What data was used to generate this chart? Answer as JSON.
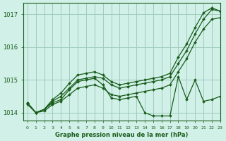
{
  "title": "Graphe pression niveau de la mer (hPa)",
  "bg_color": "#d0f0e8",
  "grid_color": "#a0ccbb",
  "line_color": "#1a5c1a",
  "xlim": [
    -0.5,
    23
  ],
  "ylim": [
    1013.75,
    1017.35
  ],
  "yticks": [
    1014,
    1015,
    1016,
    1017
  ],
  "xticks": [
    0,
    1,
    2,
    3,
    4,
    5,
    6,
    7,
    8,
    9,
    10,
    11,
    12,
    13,
    14,
    15,
    16,
    17,
    18,
    19,
    20,
    21,
    22,
    23
  ],
  "line1": [
    1014.3,
    1014.0,
    1014.1,
    1014.35,
    1014.5,
    1014.75,
    1015.0,
    1015.05,
    1015.1,
    1015.05,
    1014.85,
    1014.75,
    1014.8,
    1014.85,
    1014.9,
    1014.95,
    1015.0,
    1015.1,
    1015.5,
    1015.9,
    1016.4,
    1016.85,
    1017.15,
    1017.1
  ],
  "line2": [
    1014.3,
    1014.0,
    1014.1,
    1014.4,
    1014.6,
    1014.9,
    1015.15,
    1015.2,
    1015.25,
    1015.15,
    1014.95,
    1014.85,
    1014.9,
    1014.95,
    1015.0,
    1015.05,
    1015.1,
    1015.2,
    1015.7,
    1016.1,
    1016.6,
    1017.05,
    1017.2,
    1017.1
  ],
  "line3": [
    1014.3,
    1014.0,
    1014.1,
    1014.3,
    1014.4,
    1014.7,
    1014.95,
    1015.0,
    1015.05,
    1014.85,
    1014.45,
    1014.4,
    1014.45,
    1014.5,
    1014.0,
    1013.9,
    1013.9,
    1013.9,
    1015.1,
    1014.4,
    1015.0,
    1014.35,
    1014.4,
    1014.5
  ],
  "line4": [
    1014.25,
    1014.0,
    1014.05,
    1014.25,
    1014.35,
    1014.55,
    1014.75,
    1014.8,
    1014.85,
    1014.75,
    1014.55,
    1014.5,
    1014.55,
    1014.6,
    1014.65,
    1014.7,
    1014.75,
    1014.85,
    1015.25,
    1015.65,
    1016.15,
    1016.55,
    1016.85,
    1016.9
  ]
}
